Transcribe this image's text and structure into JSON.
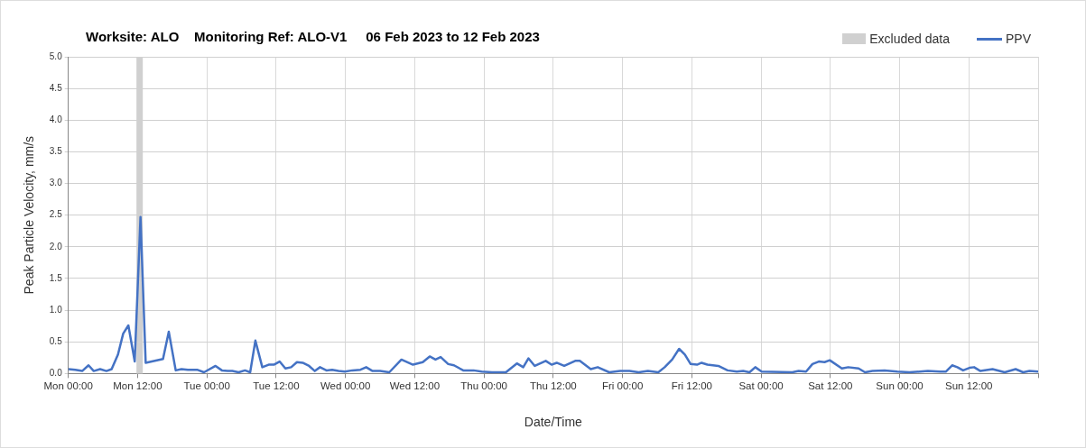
{
  "chart_data": {
    "type": "line",
    "title": "Worksite: ALO    Monitoring Ref: ALO-V1     06 Feb 2023 to 12 Feb 2023",
    "xlabel": "Date/Time",
    "ylabel": "Peak Particle Velocity, mm/s",
    "xlim": [
      "2023-02-06T00:00",
      "2023-02-13T00:00"
    ],
    "xticks": [
      {
        "value": "2023-02-06T00:00",
        "label": "Mon 00:00"
      },
      {
        "value": "2023-02-06T12:00",
        "label": "Mon 12:00"
      },
      {
        "value": "2023-02-07T00:00",
        "label": "Tue 00:00"
      },
      {
        "value": "2023-02-07T12:00",
        "label": "Tue 12:00"
      },
      {
        "value": "2023-02-08T00:00",
        "label": "Wed 00:00"
      },
      {
        "value": "2023-02-08T12:00",
        "label": "Wed 12:00"
      },
      {
        "value": "2023-02-09T00:00",
        "label": "Thu 00:00"
      },
      {
        "value": "2023-02-09T12:00",
        "label": "Thu 12:00"
      },
      {
        "value": "2023-02-10T00:00",
        "label": "Fri 00:00"
      },
      {
        "value": "2023-02-10T12:00",
        "label": "Fri 12:00"
      },
      {
        "value": "2023-02-11T00:00",
        "label": "Sat 00:00"
      },
      {
        "value": "2023-02-11T12:00",
        "label": "Sat 12:00"
      },
      {
        "value": "2023-02-12T00:00",
        "label": "Sun 00:00"
      },
      {
        "value": "2023-02-12T12:00",
        "label": "Sun 12:00"
      },
      {
        "value": "2023-02-13T00:00",
        "label": null
      }
    ],
    "ylim": [
      0,
      5
    ],
    "yticks": [
      {
        "value": 0,
        "label": "0.0"
      },
      {
        "value": 0.5,
        "label": "0.5"
      },
      {
        "value": 1,
        "label": "1.0"
      },
      {
        "value": 1.5,
        "label": "1.5"
      },
      {
        "value": 2,
        "label": "2.0"
      },
      {
        "value": 2.5,
        "label": "2.5"
      },
      {
        "value": 3,
        "label": "3.0"
      },
      {
        "value": 3.5,
        "label": "3.5"
      },
      {
        "value": 4,
        "label": "4.0"
      },
      {
        "value": 4.5,
        "label": "4.5"
      },
      {
        "value": 5,
        "label": "5.0"
      }
    ],
    "grid": true,
    "legend": "top right",
    "marker": "none",
    "line_style": "solid",
    "bands": [
      {
        "axis": "x",
        "from": "2023-02-06T11:48",
        "to": "2023-02-06T12:54",
        "label": "Excluded data",
        "color": "#d0d0d0"
      }
    ],
    "series": [
      {
        "name": "PPV",
        "color": "#4472c4",
        "x": [
          "2023-02-06T00:00",
          "2023-02-06T01:12",
          "2023-02-06T02:24",
          "2023-02-06T03:30",
          "2023-02-06T04:24",
          "2023-02-06T05:30",
          "2023-02-06T06:36",
          "2023-02-06T07:30",
          "2023-02-06T08:36",
          "2023-02-06T09:30",
          "2023-02-06T10:24",
          "2023-02-06T11:30",
          "2023-02-06T12:30",
          "2023-02-06T13:24",
          "2023-02-06T16:24",
          "2023-02-06T17:24",
          "2023-02-06T18:36",
          "2023-02-06T19:36",
          "2023-02-06T20:42",
          "2023-02-06T22:18",
          "2023-02-06T23:30",
          "2023-02-07T01:30",
          "2023-02-07T02:36",
          "2023-02-07T03:36",
          "2023-02-07T04:24",
          "2023-02-07T05:30",
          "2023-02-07T06:36",
          "2023-02-07T07:30",
          "2023-02-07T08:24",
          "2023-02-07T09:36",
          "2023-02-07T10:42",
          "2023-02-07T11:36",
          "2023-02-07T12:36",
          "2023-02-07T13:36",
          "2023-02-07T14:36",
          "2023-02-07T15:36",
          "2023-02-07T16:36",
          "2023-02-07T17:42",
          "2023-02-07T18:42",
          "2023-02-07T19:36",
          "2023-02-07T20:42",
          "2023-02-07T21:42",
          "2023-02-07T22:48",
          "2023-02-07T23:54",
          "2023-02-08T01:12",
          "2023-02-08T02:36",
          "2023-02-08T03:36",
          "2023-02-08T04:42",
          "2023-02-08T06:00",
          "2023-02-08T07:36",
          "2023-02-08T09:42",
          "2023-02-08T11:42",
          "2023-02-08T13:24",
          "2023-02-08T14:36",
          "2023-02-08T15:36",
          "2023-02-08T16:30",
          "2023-02-08T17:48",
          "2023-02-08T18:48",
          "2023-02-08T20:24",
          "2023-02-08T22:12",
          "2023-02-08T23:36",
          "2023-02-09T01:24",
          "2023-02-09T03:48",
          "2023-02-09T05:42",
          "2023-02-09T06:48",
          "2023-02-09T07:42",
          "2023-02-09T08:48",
          "2023-02-09T10:42",
          "2023-02-09T11:42",
          "2023-02-09T12:36",
          "2023-02-09T13:54",
          "2023-02-09T15:48",
          "2023-02-09T16:36",
          "2023-02-09T18:30",
          "2023-02-09T19:42",
          "2023-02-09T21:42",
          "2023-02-09T23:36",
          "2023-02-10T01:12",
          "2023-02-10T02:48",
          "2023-02-10T04:24",
          "2023-02-10T06:12",
          "2023-02-10T07:18",
          "2023-02-10T08:36",
          "2023-02-10T09:48",
          "2023-02-10T10:48",
          "2023-02-10T11:48",
          "2023-02-10T12:54",
          "2023-02-10T13:42",
          "2023-02-10T14:42",
          "2023-02-10T16:36",
          "2023-02-10T18:12",
          "2023-02-10T19:48",
          "2023-02-10T20:54",
          "2023-02-10T22:00",
          "2023-02-10T23:00",
          "2023-02-11T00:06",
          "2023-02-11T05:24",
          "2023-02-11T06:30",
          "2023-02-11T07:48",
          "2023-02-11T08:54",
          "2023-02-11T10:00",
          "2023-02-11T11:00",
          "2023-02-11T11:54",
          "2023-02-11T14:00",
          "2023-02-11T15:06",
          "2023-02-11T16:54",
          "2023-02-11T18:00",
          "2023-02-11T19:18",
          "2023-02-11T21:24",
          "2023-02-11T23:36",
          "2023-02-12T01:42",
          "2023-02-12T04:54",
          "2023-02-12T07:00",
          "2023-02-12T08:00",
          "2023-02-12T09:06",
          "2023-02-12T10:00",
          "2023-02-12T11:00",
          "2023-02-12T12:06",
          "2023-02-12T12:54",
          "2023-02-12T14:00",
          "2023-02-12T16:06",
          "2023-02-12T18:12",
          "2023-02-12T20:06",
          "2023-02-12T21:24",
          "2023-02-12T22:30",
          "2023-02-13T00:00"
        ],
        "values": [
          0.07,
          0.06,
          0.04,
          0.13,
          0.04,
          0.07,
          0.04,
          0.07,
          0.3,
          0.63,
          0.76,
          0.19,
          2.47,
          0.17,
          0.23,
          0.66,
          0.05,
          0.07,
          0.06,
          0.06,
          0.02,
          0.12,
          0.05,
          0.04,
          0.04,
          0.02,
          0.05,
          0.02,
          0.52,
          0.1,
          0.14,
          0.14,
          0.19,
          0.08,
          0.1,
          0.18,
          0.17,
          0.12,
          0.04,
          0.1,
          0.05,
          0.06,
          0.04,
          0.03,
          0.05,
          0.06,
          0.1,
          0.04,
          0.04,
          0.02,
          0.22,
          0.14,
          0.18,
          0.27,
          0.22,
          0.26,
          0.15,
          0.13,
          0.05,
          0.05,
          0.03,
          0.02,
          0.02,
          0.16,
          0.1,
          0.24,
          0.12,
          0.2,
          0.14,
          0.17,
          0.12,
          0.2,
          0.2,
          0.07,
          0.1,
          0.02,
          0.04,
          0.04,
          0.02,
          0.04,
          0.02,
          0.1,
          0.22,
          0.39,
          0.3,
          0.15,
          0.14,
          0.17,
          0.14,
          0.12,
          0.05,
          0.03,
          0.04,
          0.02,
          0.1,
          0.03,
          0.02,
          0.04,
          0.03,
          0.15,
          0.19,
          0.18,
          0.21,
          0.08,
          0.1,
          0.08,
          0.02,
          0.04,
          0.05,
          0.03,
          0.02,
          0.04,
          0.03,
          0.03,
          0.13,
          0.1,
          0.05,
          0.09,
          0.1,
          0.04,
          0.07,
          0.02,
          0.07,
          0.02,
          0.04,
          0.03
        ]
      }
    ]
  }
}
